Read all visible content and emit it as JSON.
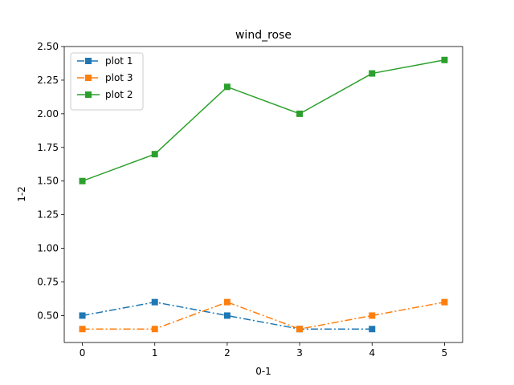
{
  "chart_data": {
    "type": "line",
    "title": "wind_rose",
    "xlabel": "0-1",
    "ylabel": "1-2",
    "xlim": [
      -0.25,
      5.25
    ],
    "ylim": [
      0.3,
      2.5
    ],
    "xticks": [
      0,
      1,
      2,
      3,
      4,
      5
    ],
    "xtick_labels": [
      "0",
      "1",
      "2",
      "3",
      "4",
      "5"
    ],
    "yticks": [
      0.5,
      0.75,
      1.0,
      1.25,
      1.5,
      1.75,
      2.0,
      2.25,
      2.5
    ],
    "ytick_labels": [
      "0.50",
      "0.75",
      "1.00",
      "1.25",
      "1.50",
      "1.75",
      "2.00",
      "2.25",
      "2.50"
    ],
    "grid": false,
    "legend_position": "top-left",
    "series": [
      {
        "name": "plot 1",
        "color": "#1f77b4",
        "linestyle": "dashdot",
        "marker": "square",
        "x": [
          0,
          1,
          2,
          3,
          4
        ],
        "y": [
          0.5,
          0.6,
          0.5,
          0.4,
          0.4
        ]
      },
      {
        "name": "plot 3",
        "color": "#ff7f0e",
        "linestyle": "dashdot",
        "marker": "square",
        "x": [
          0,
          1,
          2,
          3,
          4,
          5
        ],
        "y": [
          0.4,
          0.4,
          0.6,
          0.4,
          0.5,
          0.6
        ]
      },
      {
        "name": "plot 2",
        "color": "#2ca02c",
        "linestyle": "solid",
        "marker": "square",
        "x": [
          0,
          1,
          2,
          3,
          4,
          5
        ],
        "y": [
          1.5,
          1.7,
          2.2,
          2.0,
          2.3,
          2.4
        ]
      }
    ]
  }
}
